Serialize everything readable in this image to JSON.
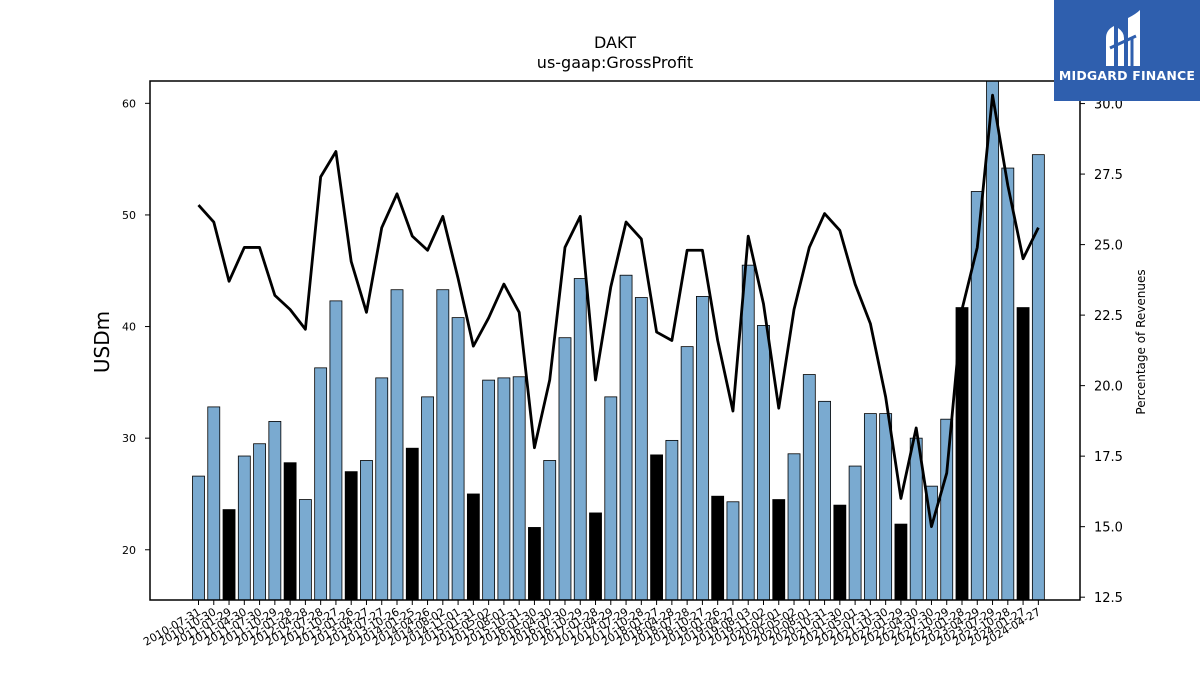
{
  "title": "DAKT",
  "subtitle": "us-gaap:GrossProfit",
  "logo": {
    "text": "MIDGARD FINANCE",
    "bg_color": "#2f5fae"
  },
  "colors": {
    "bar": "#7aaad0",
    "bar_highlight": "#000000",
    "line": "#000000"
  },
  "chart_data": {
    "type": "bar",
    "xlabel": "",
    "ylabel": "USDm",
    "y2label": "Percentage of Revenues",
    "ylim": [
      15.5,
      62
    ],
    "y2lim": [
      12.4,
      30.8
    ],
    "yticks": [
      20,
      30,
      40,
      50,
      60
    ],
    "y2ticks": [
      "12.5",
      "15.0",
      "17.5",
      "20.0",
      "22.5",
      "25.0",
      "27.5",
      "30.0"
    ],
    "categories": [
      "2010-07-31",
      "2010-10-30",
      "2011-01-29",
      "2011-04-30",
      "2011-07-30",
      "2011-10-29",
      "2012-01-28",
      "2012-04-28",
      "2012-07-28",
      "2012-10-27",
      "2013-01-26",
      "2013-04-27",
      "2013-07-27",
      "2013-10-26",
      "2014-01-25",
      "2014-04-26",
      "2014-08-02",
      "2014-11-01",
      "2015-01-31",
      "2015-05-02",
      "2015-08-01",
      "2015-10-31",
      "2016-01-30",
      "2016-04-30",
      "2016-07-30",
      "2016-10-29",
      "2017-01-28",
      "2017-04-29",
      "2017-07-29",
      "2017-10-28",
      "2018-01-27",
      "2018-04-28",
      "2018-07-28",
      "2018-10-27",
      "2019-01-26",
      "2019-04-27",
      "2019-08-03",
      "2019-11-02",
      "2020-02-01",
      "2020-05-02",
      "2020-08-01",
      "2020-10-31",
      "2021-01-30",
      "2021-05-01",
      "2021-07-31",
      "2021-10-30",
      "2022-01-29",
      "2022-04-30",
      "2022-07-30",
      "2022-10-29",
      "2023-01-28",
      "2023-04-29",
      "2023-07-29",
      "2023-10-28",
      "2024-01-27",
      "2024-04-27"
    ],
    "series": [
      {
        "values": [
          26.6,
          32.8,
          23.6,
          28.4,
          29.5,
          31.5,
          27.8,
          24.5,
          36.3,
          42.3,
          27.0,
          28.0,
          35.4,
          43.3,
          29.1,
          33.7,
          43.3,
          40.8,
          25.0,
          35.2,
          35.4,
          35.5,
          22.0,
          28.0,
          39.0,
          44.3,
          23.3,
          33.7,
          44.6,
          42.6,
          28.5,
          29.8,
          38.2,
          42.7,
          24.8,
          24.3,
          45.5,
          40.1,
          24.5,
          28.6,
          35.7,
          33.3,
          24.0,
          27.5,
          32.2,
          32.2,
          22.3,
          30.0,
          25.7,
          31.7,
          41.7,
          52.1,
          62.0,
          54.2,
          41.7,
          55.4
        ],
        "highlight": [
          false,
          false,
          true,
          false,
          false,
          false,
          true,
          false,
          false,
          false,
          true,
          false,
          false,
          false,
          true,
          false,
          false,
          false,
          true,
          false,
          false,
          false,
          true,
          false,
          false,
          false,
          true,
          false,
          false,
          false,
          true,
          false,
          false,
          false,
          true,
          false,
          false,
          false,
          true,
          false,
          false,
          false,
          true,
          false,
          false,
          false,
          true,
          false,
          false,
          false,
          true,
          false,
          false,
          false,
          true,
          false
        ]
      },
      {
        "values": [
          26.4,
          25.8,
          23.7,
          24.9,
          24.9,
          23.2,
          22.7,
          22.0,
          27.4,
          28.3,
          24.4,
          22.6,
          25.6,
          26.8,
          25.3,
          24.8,
          26.0,
          23.8,
          21.4,
          22.4,
          23.6,
          22.6,
          17.8,
          20.2,
          24.9,
          26.0,
          20.2,
          23.5,
          25.8,
          25.2,
          21.9,
          21.6,
          24.8,
          24.8,
          21.6,
          19.1,
          25.3,
          22.9,
          19.2,
          22.7,
          24.9,
          26.1,
          25.5,
          23.6,
          22.2,
          19.6,
          16.0,
          18.5,
          15.0,
          16.9,
          22.7,
          24.9,
          30.3,
          27.1,
          24.5,
          25.6
        ]
      }
    ]
  }
}
